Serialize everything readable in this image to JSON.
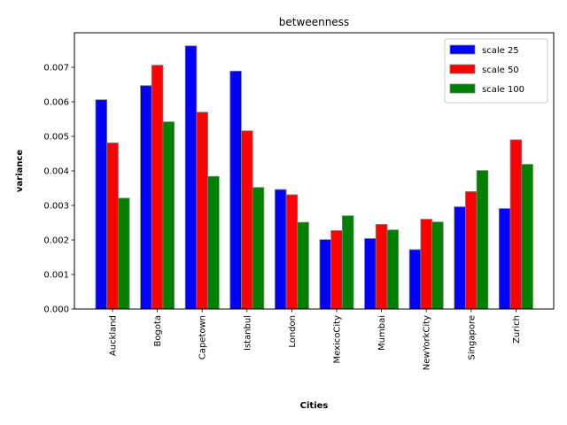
{
  "chart_data": {
    "type": "bar",
    "title": "betweenness",
    "xlabel": "Cities",
    "ylabel": "variance",
    "categories": [
      "Auckland",
      "Bogota",
      "Capetown",
      "Istanbul",
      "London",
      "MexicoCity",
      "Mumbai",
      "NewYorkCity",
      "Singapore",
      "Zurich"
    ],
    "series": [
      {
        "name": "scale 25",
        "color": "#0000ff",
        "values": [
          0.00606,
          0.00647,
          0.00762,
          0.00689,
          0.00346,
          0.00201,
          0.00204,
          0.00172,
          0.00296,
          0.00291
        ]
      },
      {
        "name": "scale 50",
        "color": "#ff0000",
        "values": [
          0.00481,
          0.00706,
          0.0057,
          0.00516,
          0.00331,
          0.00227,
          0.00245,
          0.0026,
          0.0034,
          0.0049
        ]
      },
      {
        "name": "scale 100",
        "color": "#008000",
        "values": [
          0.00321,
          0.00542,
          0.00384,
          0.00352,
          0.00251,
          0.0027,
          0.00229,
          0.00252,
          0.00401,
          0.00419
        ]
      }
    ],
    "ylim": [
      0,
      0.008
    ],
    "yticks": [
      "0.000",
      "0.001",
      "0.002",
      "0.003",
      "0.004",
      "0.005",
      "0.006",
      "0.007"
    ],
    "legend_position": "top-right",
    "grid": false
  }
}
